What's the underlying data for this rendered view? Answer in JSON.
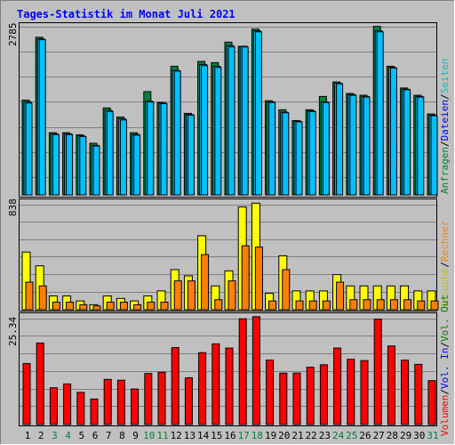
{
  "title": "Tages-Statistik im Monat Juli 2021",
  "colors": {
    "background": "#c0c0c0",
    "title": "#0000ff",
    "hits": "#008040",
    "files": "#00c0ff",
    "pages": "#00c0c0",
    "visits": "#ffff00",
    "sites": "#ff8000",
    "volume": "#ff0000",
    "kbin": "#0000ff",
    "kbout": "#008000",
    "weekend": "#008040",
    "normal_day": "#000000",
    "grid": "#808080",
    "separator": "#0000ff"
  },
  "legend": {
    "top": [
      {
        "text": "Anfragen",
        "color": "#008040"
      },
      {
        "text": "/",
        "color": "#000000"
      },
      {
        "text": "Dateien",
        "color": "#0000ff"
      },
      {
        "text": "/",
        "color": "#000000"
      },
      {
        "text": "Seiten",
        "color": "#00c0c0"
      }
    ],
    "middle": [
      {
        "text": "Besuche",
        "color": "#c0c000"
      },
      {
        "text": "/",
        "color": "#000000"
      },
      {
        "text": "Rechner",
        "color": "#ff8000"
      }
    ],
    "bottom": [
      {
        "text": "Volumen",
        "color": "#ff0000"
      },
      {
        "text": "/",
        "color": "#000000"
      },
      {
        "text": "Vol. In",
        "color": "#0000ff"
      },
      {
        "text": "/",
        "color": "#000000"
      },
      {
        "text": "Vol. Out",
        "color": "#008000"
      }
    ]
  },
  "chart_data": {
    "type": "bar",
    "days": [
      1,
      2,
      3,
      4,
      5,
      6,
      7,
      8,
      9,
      10,
      11,
      12,
      13,
      14,
      15,
      16,
      17,
      18,
      19,
      20,
      21,
      22,
      23,
      24,
      25,
      26,
      27,
      28,
      29,
      30,
      31
    ],
    "weekend_days": [
      3,
      4,
      10,
      11,
      17,
      18,
      24,
      25,
      31
    ],
    "panels": [
      {
        "id": "requests",
        "max_label": "2785",
        "max": 2785,
        "series": [
          {
            "name": "Anfragen",
            "values": [
              1570,
              2610,
              1030,
              1030,
              995,
              855,
              1440,
              1290,
              1030,
              1710,
              1530,
              2130,
              1350,
              2210,
              2190,
              2530,
              2460,
              2745,
              1560,
              1410,
              1230,
              1410,
              1630,
              1870,
              1680,
              1650,
              2790,
              2130,
              1770,
              1650,
              1340
            ]
          },
          {
            "name": "Dateien",
            "values": [
              1540,
              2580,
              1010,
              1010,
              975,
              820,
              1400,
              1260,
              1000,
              1550,
              1520,
              2060,
              1330,
              2160,
              2130,
              2470,
              2460,
              2715,
              1540,
              1370,
              1220,
              1390,
              1540,
              1850,
              1660,
              1630,
              2715,
              2110,
              1750,
              1630,
              1320
            ]
          },
          {
            "name": "Seiten",
            "values": [
              1520,
              2570,
              1000,
              1000,
              965,
              810,
              1380,
              1240,
              990,
              1540,
              1510,
              2050,
              1320,
              2140,
              2110,
              2450,
              2450,
              2700,
              1530,
              1360,
              1210,
              1380,
              1530,
              1840,
              1650,
              1620,
              2700,
              2100,
              1740,
              1620,
              1310
            ]
          }
        ]
      },
      {
        "id": "visits",
        "max_label": "838",
        "max": 838,
        "series": [
          {
            "name": "Besuche",
            "values": [
              460,
              350,
              110,
              110,
              70,
              40,
              110,
              90,
              70,
              110,
              150,
              320,
              270,
              590,
              190,
              310,
              820,
              850,
              130,
              430,
              150,
              150,
              150,
              280,
              190,
              190,
              190,
              190,
              190,
              150,
              150
            ]
          },
          {
            "name": "Rechner",
            "values": [
              220,
              190,
              60,
              60,
              40,
              30,
              60,
              60,
              40,
              60,
              60,
              230,
              230,
              440,
              80,
              230,
              510,
              500,
              70,
              320,
              70,
              70,
              70,
              220,
              80,
              80,
              80,
              80,
              80,
              70,
              70
            ]
          }
        ]
      },
      {
        "id": "volume",
        "max_label": "25.34",
        "max": 25.34,
        "series": [
          {
            "name": "Volumen",
            "values": [
              14.6,
              19.5,
              8.8,
              9.7,
              7.7,
              6.1,
              10.8,
              10.6,
              8.5,
              12.2,
              12.5,
              18.4,
              11.2,
              17.2,
              19.3,
              18.3,
              25.3,
              25.8,
              15.4,
              12.3,
              12.3,
              13.7,
              14.3,
              18.3,
              15.6,
              15.3,
              25.2,
              18.8,
              15.4,
              14.4,
              10.5
            ]
          }
        ]
      }
    ]
  }
}
